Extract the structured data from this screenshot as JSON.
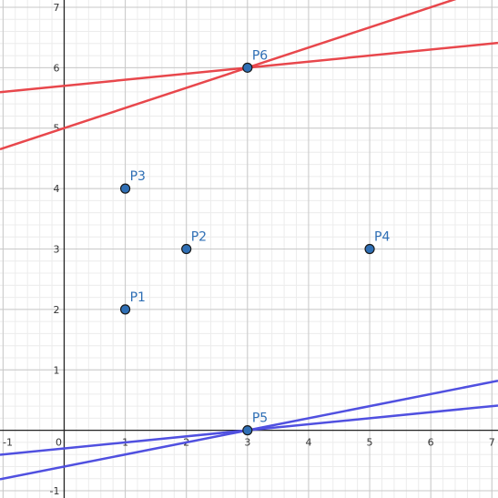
{
  "chart_data": {
    "type": "scatter",
    "title": "",
    "xlabel": "",
    "ylabel": "",
    "xlim": [
      -1.05,
      7.1
    ],
    "ylim": [
      -1.12,
      7.12
    ],
    "grid": true,
    "minor_grid_step": 0.2,
    "x_ticks": [
      -1,
      0,
      1,
      2,
      3,
      4,
      5,
      6,
      7
    ],
    "y_ticks": [
      -1,
      1,
      2,
      3,
      4,
      5,
      6,
      7
    ],
    "x_tick_labels": [
      "-1",
      "0",
      "1",
      "2",
      "3",
      "4",
      "5",
      "6",
      "7"
    ],
    "y_tick_labels": [
      "-1",
      "1",
      "2",
      "3",
      "4",
      "5",
      "6",
      "7"
    ],
    "points": [
      {
        "label": "P1",
        "x": 1,
        "y": 2
      },
      {
        "label": "P2",
        "x": 2,
        "y": 3
      },
      {
        "label": "P3",
        "x": 1,
        "y": 4
      },
      {
        "label": "P4",
        "x": 5,
        "y": 3
      },
      {
        "label": "P5",
        "x": 3,
        "y": 0
      },
      {
        "label": "P6",
        "x": 3,
        "y": 6
      }
    ],
    "lines": [
      {
        "color": "#e8474c",
        "through": [
          3,
          6
        ],
        "slope": 0.3333
      },
      {
        "color": "#e8474c",
        "through": [
          3,
          6
        ],
        "slope": 0.1
      },
      {
        "color": "#5050e0",
        "through": [
          3,
          0
        ],
        "slope": 0.2
      },
      {
        "color": "#5050e0",
        "through": [
          3,
          0
        ],
        "slope": 0.1
      }
    ],
    "colors": {
      "point_fill": "#2f6fb5",
      "point_stroke": "#1a1a1a",
      "major_grid": "#c8c8c8",
      "minor_grid": "#ececec",
      "axis": "#222222"
    }
  }
}
